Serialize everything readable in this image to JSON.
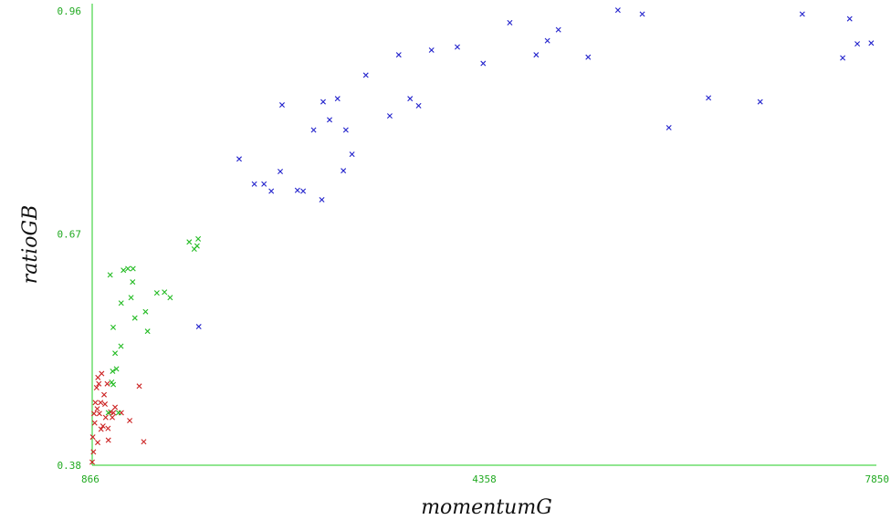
{
  "chart_data": {
    "type": "scatter",
    "xlabel": "momentumG",
    "ylabel": "ratioGB",
    "xlim": [
      866,
      7850
    ],
    "ylim": [
      0.38,
      0.96
    ],
    "xticks": [
      "866",
      "4358",
      "7850"
    ],
    "yticks": [
      "0.96",
      "0.67",
      "0.38"
    ],
    "axis_color": "#22cc22",
    "marker": "x",
    "series": [
      {
        "color": "#cc2222",
        "points": [
          [
            866,
            0.384
          ],
          [
            871,
            0.416
          ],
          [
            877,
            0.397
          ],
          [
            882,
            0.446
          ],
          [
            888,
            0.434
          ],
          [
            894,
            0.46
          ],
          [
            905,
            0.479
          ],
          [
            911,
            0.452
          ],
          [
            917,
            0.492
          ],
          [
            925,
            0.484
          ],
          [
            930,
            0.446
          ],
          [
            941,
            0.46
          ],
          [
            945,
            0.426
          ],
          [
            950,
            0.497
          ],
          [
            962,
            0.43
          ],
          [
            972,
            0.47
          ],
          [
            980,
            0.458
          ],
          [
            986,
            0.441
          ],
          [
            1000,
            0.484
          ],
          [
            1007,
            0.427
          ],
          [
            1030,
            0.448
          ],
          [
            1045,
            0.441
          ],
          [
            1055,
            0.447
          ],
          [
            1070,
            0.454
          ],
          [
            1125,
            0.447
          ],
          [
            1200,
            0.437
          ],
          [
            1285,
            0.481
          ],
          [
            1325,
            0.41
          ],
          [
            915,
            0.409
          ],
          [
            1010,
            0.412
          ]
        ]
      },
      {
        "color": "#22bb22",
        "points": [
          [
            1026,
            0.623
          ],
          [
            1039,
            0.486
          ],
          [
            1053,
            0.556
          ],
          [
            1070,
            0.523
          ],
          [
            1122,
            0.532
          ],
          [
            1124,
            0.587
          ],
          [
            1144,
            0.629
          ],
          [
            1184,
            0.631
          ],
          [
            1212,
            0.594
          ],
          [
            1226,
            0.614
          ],
          [
            1246,
            0.568
          ],
          [
            1341,
            0.576
          ],
          [
            1359,
            0.551
          ],
          [
            1442,
            0.6
          ],
          [
            1560,
            0.594
          ],
          [
            1730,
            0.665
          ],
          [
            1775,
            0.656
          ],
          [
            1800,
            0.66
          ],
          [
            1810,
            0.669
          ],
          [
            1510,
            0.601
          ],
          [
            1054,
            0.483
          ],
          [
            1082,
            0.503
          ],
          [
            1048,
            0.5
          ],
          [
            1100,
            0.447
          ],
          [
            1010,
            0.447
          ],
          [
            1230,
            0.631
          ]
        ]
      },
      {
        "color": "#2222cc",
        "points": [
          [
            1815,
            0.557
          ],
          [
            2175,
            0.771
          ],
          [
            2310,
            0.739
          ],
          [
            2396,
            0.739
          ],
          [
            2461,
            0.73
          ],
          [
            2541,
            0.755
          ],
          [
            2557,
            0.84
          ],
          [
            2694,
            0.731
          ],
          [
            2745,
            0.73
          ],
          [
            2838,
            0.808
          ],
          [
            2911,
            0.719
          ],
          [
            2923,
            0.844
          ],
          [
            2980,
            0.821
          ],
          [
            3051,
            0.848
          ],
          [
            3103,
            0.756
          ],
          [
            3125,
            0.808
          ],
          [
            3180,
            0.777
          ],
          [
            3303,
            0.878
          ],
          [
            3516,
            0.826
          ],
          [
            3596,
            0.904
          ],
          [
            3697,
            0.848
          ],
          [
            3773,
            0.839
          ],
          [
            3888,
            0.91
          ],
          [
            4118,
            0.914
          ],
          [
            4348,
            0.893
          ],
          [
            4585,
            0.945
          ],
          [
            4820,
            0.904
          ],
          [
            5018,
            0.936
          ],
          [
            5283,
            0.901
          ],
          [
            5548,
            0.961
          ],
          [
            6002,
            0.811
          ],
          [
            6355,
            0.849
          ],
          [
            6815,
            0.844
          ],
          [
            7190,
            0.956
          ],
          [
            7550,
            0.9
          ],
          [
            7612,
            0.95
          ],
          [
            7680,
            0.918
          ],
          [
            7804,
            0.919
          ],
          [
            4920,
            0.922
          ],
          [
            5765,
            0.956
          ]
        ]
      }
    ]
  }
}
